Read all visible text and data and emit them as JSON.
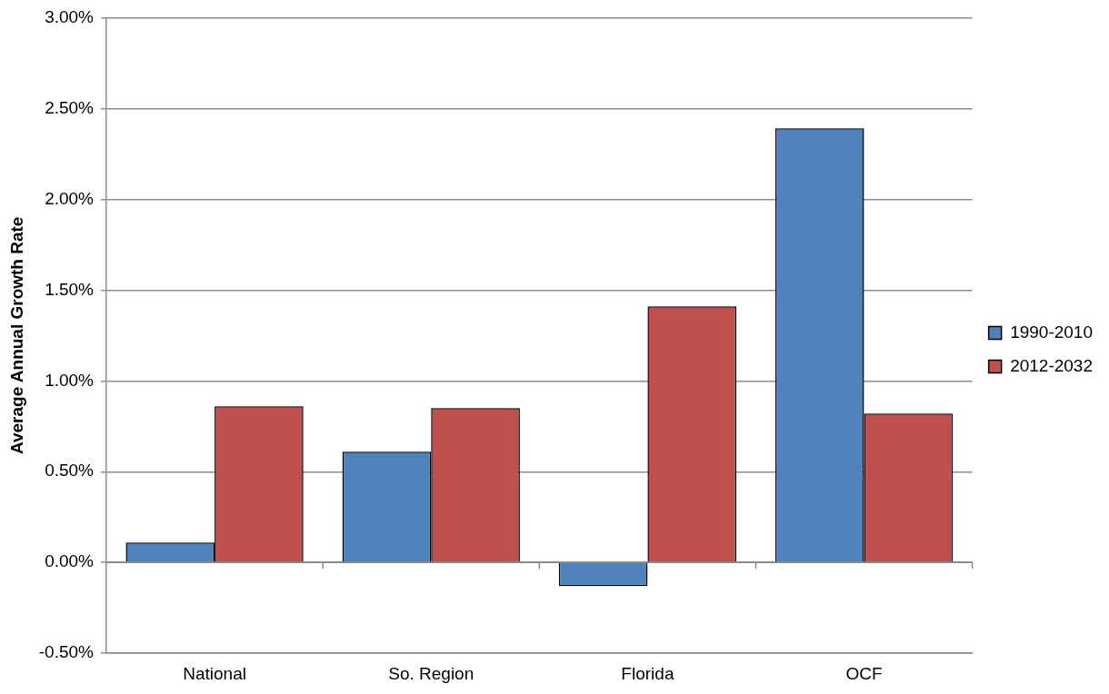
{
  "chart_data": {
    "type": "bar",
    "ylabel": "Average Annual Growth Rate",
    "categories": [
      "National",
      "So. Region",
      "Florida",
      "OCF"
    ],
    "series": [
      {
        "name": "1990-2010",
        "color": "#4f81bd",
        "values": [
          0.11,
          0.61,
          -0.13,
          2.39
        ]
      },
      {
        "name": "2012-2032",
        "color": "#c0504d",
        "values": [
          0.86,
          0.85,
          1.41,
          0.82
        ]
      }
    ],
    "ylim": [
      -0.5,
      3.0
    ],
    "yticks": [
      {
        "value": -0.5,
        "label": "-0.50%"
      },
      {
        "value": 0,
        "label": "0.00%"
      },
      {
        "value": 0.5,
        "label": "0.50%"
      },
      {
        "value": 1.0,
        "label": "1.00%"
      },
      {
        "value": 1.5,
        "label": "1.50%"
      },
      {
        "value": 2.0,
        "label": "2.00%"
      },
      {
        "value": 2.5,
        "label": "2.50%"
      },
      {
        "value": 3.0,
        "label": "3.00%"
      }
    ],
    "grid": "y",
    "legend": "right"
  }
}
